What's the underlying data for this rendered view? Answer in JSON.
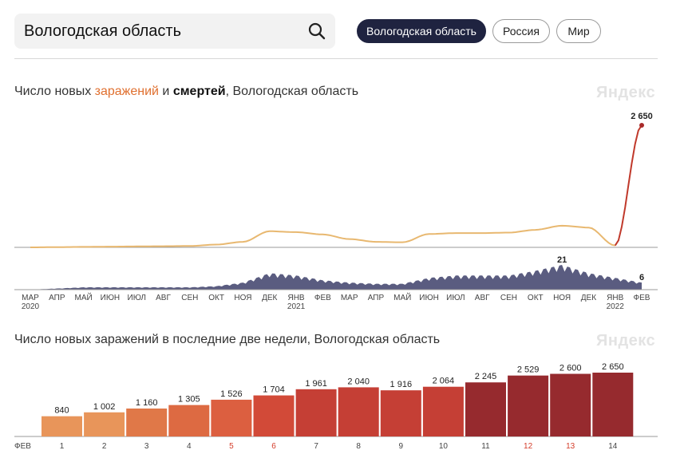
{
  "search": {
    "value": "Вологодская область"
  },
  "regions": [
    {
      "label": "Вологодская область",
      "active": true
    },
    {
      "label": "Россия",
      "active": false
    },
    {
      "label": "Мир",
      "active": false
    }
  ],
  "chart1": {
    "title_prefix": "Число новых ",
    "title_infections": "заражений",
    "title_and": " и ",
    "title_deaths": "смертей",
    "title_suffix": ", Вологодская область",
    "watermark": "Яндекс"
  },
  "chart2": {
    "title": "Число новых заражений в последние две недели, Вологодская область",
    "watermark": "Яндекс"
  },
  "colors": {
    "infections": "#e8b870",
    "infections_recent": "#c0392b",
    "deaths": "#5a5c80",
    "accent": "#e07030"
  },
  "chart_data": [
    {
      "type": "line",
      "series": [
        {
          "name": "заражений",
          "x": [
            "2020-03",
            "2020-04",
            "2020-05",
            "2020-06",
            "2020-07",
            "2020-08",
            "2020-09",
            "2020-10",
            "2020-11",
            "2020-12",
            "2021-01",
            "2021-02",
            "2021-03",
            "2021-04",
            "2021-05",
            "2021-06",
            "2021-07",
            "2021-08",
            "2021-09",
            "2021-10",
            "2021-11",
            "2021-12",
            "2022-01",
            "2022-02"
          ],
          "values": [
            0,
            5,
            10,
            15,
            20,
            25,
            30,
            60,
            120,
            350,
            330,
            280,
            180,
            120,
            110,
            290,
            310,
            310,
            320,
            380,
            470,
            430,
            40,
            2650
          ]
        },
        {
          "name": "смертей",
          "x": [
            "2020-03",
            "2020-04",
            "2020-05",
            "2020-06",
            "2020-07",
            "2020-08",
            "2020-09",
            "2020-10",
            "2020-11",
            "2020-12",
            "2021-01",
            "2021-02",
            "2021-03",
            "2021-04",
            "2021-05",
            "2021-06",
            "2021-07",
            "2021-08",
            "2021-09",
            "2021-10",
            "2021-11",
            "2021-12",
            "2022-01",
            "2022-02"
          ],
          "values": [
            0,
            1,
            2,
            2,
            2,
            2,
            2,
            3,
            6,
            14,
            12,
            8,
            6,
            5,
            5,
            10,
            12,
            12,
            12,
            16,
            21,
            14,
            10,
            6
          ]
        }
      ],
      "annotations": [
        {
          "series": "заражений",
          "label": "2 650"
        },
        {
          "series": "смертей",
          "label": "21"
        },
        {
          "series": "смертей",
          "label": "6"
        }
      ],
      "x_ticks": [
        {
          "label": "МАР",
          "sub": "2020"
        },
        {
          "label": "АПР",
          "sub": ""
        },
        {
          "label": "МАЙ",
          "sub": ""
        },
        {
          "label": "ИЮН",
          "sub": ""
        },
        {
          "label": "ИЮЛ",
          "sub": ""
        },
        {
          "label": "АВГ",
          "sub": ""
        },
        {
          "label": "СЕН",
          "sub": ""
        },
        {
          "label": "ОКТ",
          "sub": ""
        },
        {
          "label": "НОЯ",
          "sub": ""
        },
        {
          "label": "ДЕК",
          "sub": ""
        },
        {
          "label": "ЯНВ",
          "sub": "2021"
        },
        {
          "label": "ФЕВ",
          "sub": ""
        },
        {
          "label": "МАР",
          "sub": ""
        },
        {
          "label": "АПР",
          "sub": ""
        },
        {
          "label": "МАЙ",
          "sub": ""
        },
        {
          "label": "ИЮН",
          "sub": ""
        },
        {
          "label": "ИЮЛ",
          "sub": ""
        },
        {
          "label": "АВГ",
          "sub": ""
        },
        {
          "label": "СЕН",
          "sub": ""
        },
        {
          "label": "ОКТ",
          "sub": ""
        },
        {
          "label": "НОЯ",
          "sub": ""
        },
        {
          "label": "ДЕК",
          "sub": ""
        },
        {
          "label": "ЯНВ",
          "sub": "2022"
        },
        {
          "label": "ФЕВ",
          "sub": ""
        }
      ]
    },
    {
      "type": "bar",
      "month_label": "ФЕВ",
      "categories": [
        "1",
        "2",
        "3",
        "4",
        "5",
        "6",
        "7",
        "8",
        "9",
        "10",
        "11",
        "12",
        "13",
        "14"
      ],
      "values": [
        840,
        1002,
        1160,
        1305,
        1526,
        1704,
        1961,
        2040,
        1916,
        2064,
        2245,
        2529,
        2600,
        2650
      ],
      "value_labels": [
        "840",
        "1 002",
        "1 160",
        "1 305",
        "1 526",
        "1 704",
        "1 961",
        "2 040",
        "1 916",
        "2 064",
        "2 245",
        "2 529",
        "2 600",
        "2 650"
      ],
      "weekend_days": [
        "5",
        "6",
        "12",
        "13"
      ],
      "bar_colors": [
        "#e8955a",
        "#e8955a",
        "#e07848",
        "#dd6a42",
        "#dc5f40",
        "#d24a38",
        "#c53f35",
        "#c53f35",
        "#c53f35",
        "#c53f35",
        "#962a2e",
        "#962a2e",
        "#962a2e",
        "#962a2e"
      ],
      "weekend_color": "#d43d2a",
      "ylim": [
        0,
        2650
      ]
    }
  ]
}
